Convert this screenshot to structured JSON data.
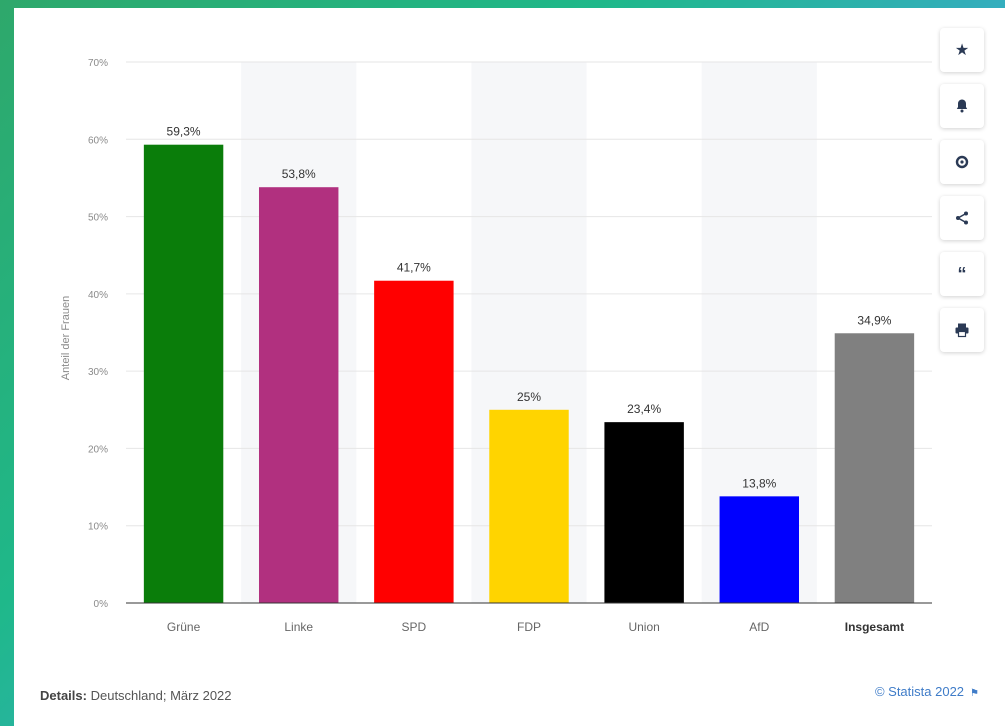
{
  "chart_data": {
    "type": "bar",
    "categories": [
      "Grüne",
      "Linke",
      "SPD",
      "FDP",
      "Union",
      "AfD",
      "Insgesamt"
    ],
    "values": [
      59.3,
      53.8,
      41.7,
      25,
      23.4,
      13.8,
      34.9
    ],
    "value_labels": [
      "59,3%",
      "53,8%",
      "41,7%",
      "25%",
      "23,4%",
      "13,8%",
      "34,9%"
    ],
    "bar_colors": [
      "#0a7d0a",
      "#b1307f",
      "#ff0000",
      "#ffd400",
      "#000000",
      "#0000ff",
      "#808080"
    ],
    "bold_categories": [
      "Insgesamt"
    ],
    "ylabel": "Anteil der Frauen",
    "ylim": [
      0,
      70
    ],
    "yticks": [
      0,
      10,
      20,
      30,
      40,
      50,
      60,
      70
    ],
    "ytick_labels": [
      "0%",
      "10%",
      "20%",
      "30%",
      "40%",
      "50%",
      "60%",
      "70%"
    ],
    "grid": true,
    "legend": "none"
  },
  "footer": {
    "details_label": "Details:",
    "details_text": "Deutschland; März 2022",
    "copyright": "© Statista 2022"
  },
  "toolbar": {
    "icons": [
      "star-icon",
      "bell-icon",
      "gear-icon",
      "share-icon",
      "quote-icon",
      "print-icon"
    ]
  }
}
